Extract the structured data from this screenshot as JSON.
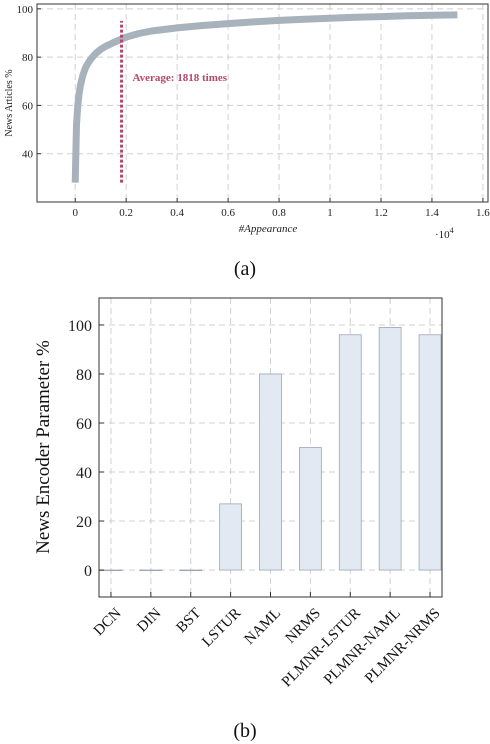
{
  "chart_data": [
    {
      "type": "line",
      "caption": "(a)",
      "xlabel": "#Appearance",
      "ylabel": "News Articles %",
      "x_multiplier_label": "·10",
      "x_multiplier_exp": "4",
      "xlim": [
        -0.15,
        1.62
      ],
      "ylim": [
        20,
        102
      ],
      "x_ticks": [
        0,
        0.2,
        0.4,
        0.6,
        0.8,
        1,
        1.2,
        1.4,
        1.6
      ],
      "x_tick_labels": [
        "0",
        "0.2",
        "0.4",
        "0.6",
        "0.8",
        "1",
        "1.2",
        "1.4",
        "1.6"
      ],
      "y_ticks": [
        40,
        60,
        80,
        100
      ],
      "y_tick_labels": [
        "40",
        "60",
        "80",
        "100"
      ],
      "grid": true,
      "series": [
        {
          "color": "#a8b2bc",
          "x": [
            0.0,
            0.005,
            0.01,
            0.015,
            0.02,
            0.03,
            0.04,
            0.05,
            0.06,
            0.08,
            0.1,
            0.12,
            0.15,
            0.2,
            0.25,
            0.3,
            0.4,
            0.5,
            0.6,
            0.7,
            0.8,
            0.9,
            1.0,
            1.1,
            1.2,
            1.3,
            1.4,
            1.5
          ],
          "y": [
            28,
            52,
            60,
            64.5,
            68,
            72.5,
            75.5,
            77.5,
            79,
            81.5,
            83.2,
            84.5,
            86,
            88.3,
            89.8,
            90.8,
            92.1,
            93.1,
            93.9,
            94.6,
            95.2,
            95.7,
            96.1,
            96.5,
            96.8,
            97.1,
            97.3,
            97.5
          ]
        }
      ],
      "annotation": {
        "text": "Average: 1818 times",
        "x": 0.1818,
        "y_range": [
          28,
          95
        ],
        "color": "#b5476e"
      }
    },
    {
      "type": "bar",
      "caption": "(b)",
      "ylabel": "News Encoder Parameter %",
      "categories": [
        "DCN",
        "DIN",
        "BST",
        "LSTUR",
        "NAML",
        "NRMS",
        "PLMNR-LSTUR",
        "PLMNR-NAML",
        "PLMNR-NRMS"
      ],
      "values": [
        0,
        0,
        0,
        27,
        80,
        50,
        96,
        99,
        96
      ],
      "ylim": [
        -11,
        111
      ],
      "y_ticks": [
        0,
        20,
        40,
        60,
        80,
        100
      ],
      "y_tick_labels": [
        "0",
        "20",
        "40",
        "60",
        "80",
        "100"
      ],
      "grid": true,
      "bar_color": "#e2e9f3",
      "bar_stroke": "#9aa7b6"
    }
  ]
}
